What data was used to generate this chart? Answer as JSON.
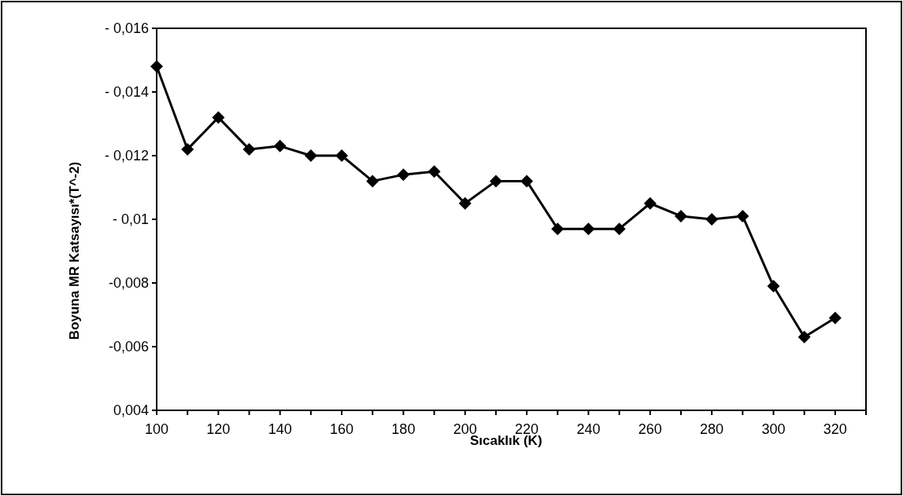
{
  "chart_data": {
    "type": "line",
    "xlabel": "Sıcaklık (K)",
    "ylabel": "Boyuna MR Katsayısı*(T^-2)",
    "x": [
      100,
      110,
      120,
      130,
      140,
      150,
      160,
      170,
      180,
      190,
      200,
      210,
      220,
      230,
      240,
      250,
      260,
      270,
      280,
      290,
      300,
      310,
      320
    ],
    "series": [
      {
        "color": "#000000",
        "values": [
          -0.0148,
          -0.0122,
          -0.0132,
          -0.0122,
          -0.0123,
          -0.012,
          -0.012,
          -0.0112,
          -0.0114,
          -0.0115,
          -0.0105,
          -0.0112,
          -0.0112,
          -0.0097,
          -0.0097,
          -0.0097,
          -0.0105,
          -0.0101,
          -0.01,
          -0.0101,
          -0.0079,
          -0.0063,
          -0.0069
        ]
      }
    ],
    "xlim": [
      100,
      330
    ],
    "xticks": [
      100,
      {
        "value": 110,
        "label": null
      },
      120,
      {
        "value": 130,
        "label": null
      },
      140,
      {
        "value": 150,
        "label": null
      },
      160,
      {
        "value": 170,
        "label": null
      },
      180,
      {
        "value": 190,
        "label": null
      },
      200,
      {
        "value": 210,
        "label": null
      },
      220,
      {
        "value": 230,
        "label": null
      },
      240,
      {
        "value": 250,
        "label": null
      },
      260,
      {
        "value": 270,
        "label": null
      },
      280,
      {
        "value": 290,
        "label": null
      },
      300,
      {
        "value": 310,
        "label": null
      },
      320,
      {
        "value": 330,
        "label": null
      }
    ],
    "ylim": [
      -0.004,
      -0.016
    ],
    "yticks": [
      {
        "value": -0.016,
        "label": "- 0,016"
      },
      {
        "value": -0.014,
        "label": "- 0,014"
      },
      {
        "value": -0.012,
        "label": "- 0,012"
      },
      {
        "value": -0.01,
        "label": "- 0,01"
      },
      {
        "value": -0.008,
        "label": "-0,008"
      },
      {
        "value": -0.006,
        "label": "-0,006"
      },
      {
        "value": -0.004,
        "label": "0,004"
      }
    ],
    "marker": "diamond",
    "line_style": "solid",
    "grid": false
  }
}
